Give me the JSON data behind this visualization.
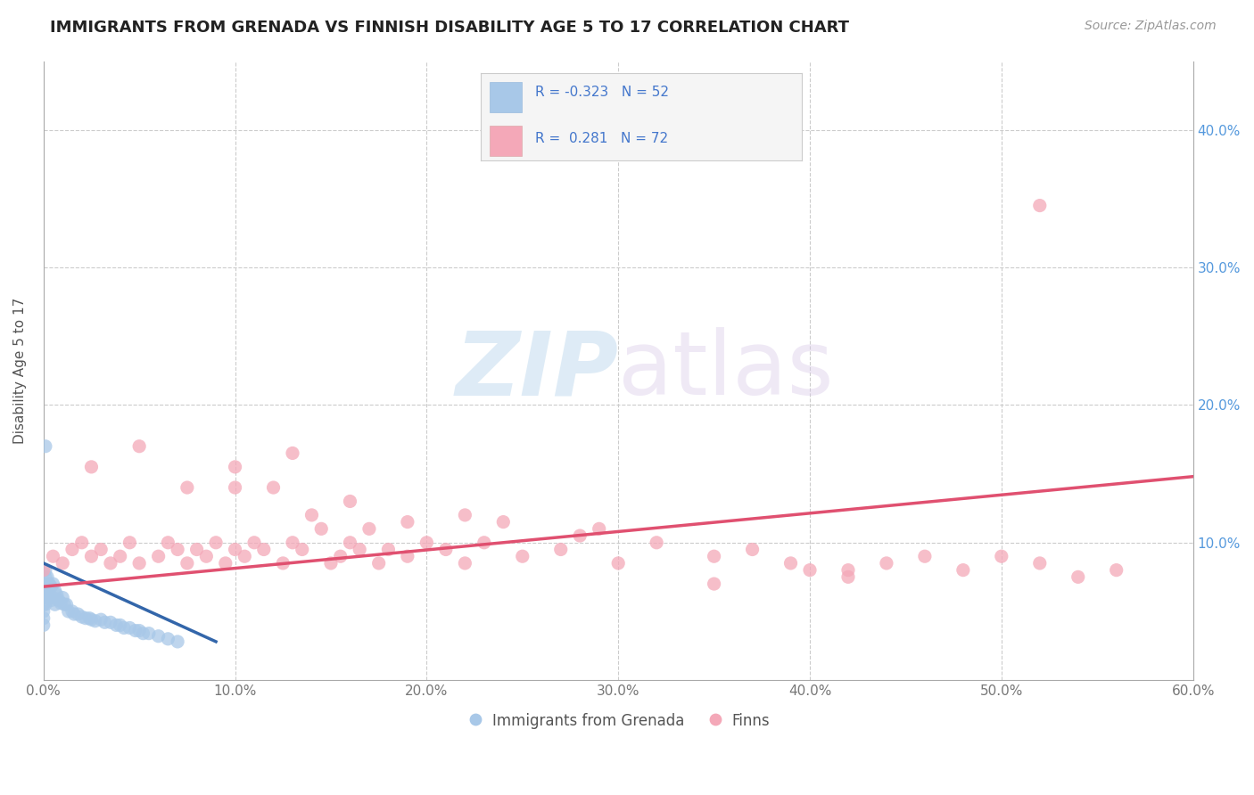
{
  "title": "IMMIGRANTS FROM GRENADA VS FINNISH DISABILITY AGE 5 TO 17 CORRELATION CHART",
  "source": "Source: ZipAtlas.com",
  "ylabel": "Disability Age 5 to 17",
  "xlim": [
    0.0,
    0.6
  ],
  "ylim": [
    0.0,
    0.45
  ],
  "xticks": [
    0.0,
    0.1,
    0.2,
    0.3,
    0.4,
    0.5,
    0.6
  ],
  "xticklabels": [
    "0.0%",
    "10.0%",
    "20.0%",
    "30.0%",
    "40.0%",
    "50.0%",
    "60.0%"
  ],
  "yticks": [
    0.0,
    0.1,
    0.2,
    0.3,
    0.4
  ],
  "yticklabels": [
    "",
    "10.0%",
    "20.0%",
    "30.0%",
    "40.0%"
  ],
  "color_blue": "#a8c8e8",
  "color_pink": "#f4a8b8",
  "color_blue_line": "#3366aa",
  "color_pink_line": "#e05070",
  "color_text_blue": "#4477cc",
  "color_yaxis_blue": "#5599dd",
  "watermark_color": "#c8dff0",
  "background_color": "#ffffff",
  "grid_color": "#cccccc",
  "grenada_x": [
    0.0,
    0.0,
    0.0,
    0.0,
    0.0,
    0.0,
    0.0,
    0.001,
    0.001,
    0.001,
    0.001,
    0.002,
    0.002,
    0.002,
    0.003,
    0.003,
    0.004,
    0.004,
    0.005,
    0.005,
    0.006,
    0.006,
    0.007,
    0.008,
    0.009,
    0.01,
    0.011,
    0.012,
    0.013,
    0.015,
    0.016,
    0.018,
    0.02,
    0.022,
    0.024,
    0.025,
    0.027,
    0.03,
    0.032,
    0.035,
    0.038,
    0.04,
    0.042,
    0.045,
    0.048,
    0.05,
    0.052,
    0.055,
    0.06,
    0.065,
    0.07,
    0.001
  ],
  "grenada_y": [
    0.07,
    0.065,
    0.06,
    0.055,
    0.05,
    0.045,
    0.04,
    0.08,
    0.075,
    0.065,
    0.055,
    0.075,
    0.065,
    0.06,
    0.07,
    0.06,
    0.068,
    0.058,
    0.07,
    0.06,
    0.065,
    0.055,
    0.062,
    0.058,
    0.056,
    0.06,
    0.055,
    0.055,
    0.05,
    0.05,
    0.048,
    0.048,
    0.046,
    0.045,
    0.045,
    0.044,
    0.043,
    0.044,
    0.042,
    0.042,
    0.04,
    0.04,
    0.038,
    0.038,
    0.036,
    0.036,
    0.034,
    0.034,
    0.032,
    0.03,
    0.028,
    0.17
  ],
  "finns_x": [
    0.0,
    0.005,
    0.01,
    0.015,
    0.02,
    0.025,
    0.03,
    0.035,
    0.04,
    0.045,
    0.05,
    0.06,
    0.065,
    0.07,
    0.075,
    0.08,
    0.085,
    0.09,
    0.095,
    0.1,
    0.1,
    0.105,
    0.11,
    0.115,
    0.12,
    0.125,
    0.13,
    0.135,
    0.14,
    0.145,
    0.15,
    0.155,
    0.16,
    0.165,
    0.17,
    0.175,
    0.18,
    0.19,
    0.2,
    0.21,
    0.22,
    0.23,
    0.24,
    0.25,
    0.27,
    0.29,
    0.3,
    0.32,
    0.35,
    0.37,
    0.39,
    0.4,
    0.42,
    0.44,
    0.46,
    0.48,
    0.5,
    0.52,
    0.54,
    0.56,
    0.025,
    0.05,
    0.075,
    0.1,
    0.13,
    0.16,
    0.19,
    0.22,
    0.28,
    0.35,
    0.42,
    0.52
  ],
  "finns_y": [
    0.08,
    0.09,
    0.085,
    0.095,
    0.1,
    0.09,
    0.095,
    0.085,
    0.09,
    0.1,
    0.085,
    0.09,
    0.1,
    0.095,
    0.085,
    0.095,
    0.09,
    0.1,
    0.085,
    0.095,
    0.14,
    0.09,
    0.1,
    0.095,
    0.14,
    0.085,
    0.1,
    0.095,
    0.12,
    0.11,
    0.085,
    0.09,
    0.1,
    0.095,
    0.11,
    0.085,
    0.095,
    0.09,
    0.1,
    0.095,
    0.085,
    0.1,
    0.115,
    0.09,
    0.095,
    0.11,
    0.085,
    0.1,
    0.09,
    0.095,
    0.085,
    0.08,
    0.075,
    0.085,
    0.09,
    0.08,
    0.09,
    0.085,
    0.075,
    0.08,
    0.155,
    0.17,
    0.14,
    0.155,
    0.165,
    0.13,
    0.115,
    0.12,
    0.105,
    0.07,
    0.08,
    0.345
  ],
  "grenada_line_x": [
    0.0,
    0.09
  ],
  "grenada_line_y": [
    0.085,
    0.028
  ],
  "finns_line_x": [
    0.0,
    0.6
  ],
  "finns_line_y": [
    0.068,
    0.148
  ]
}
